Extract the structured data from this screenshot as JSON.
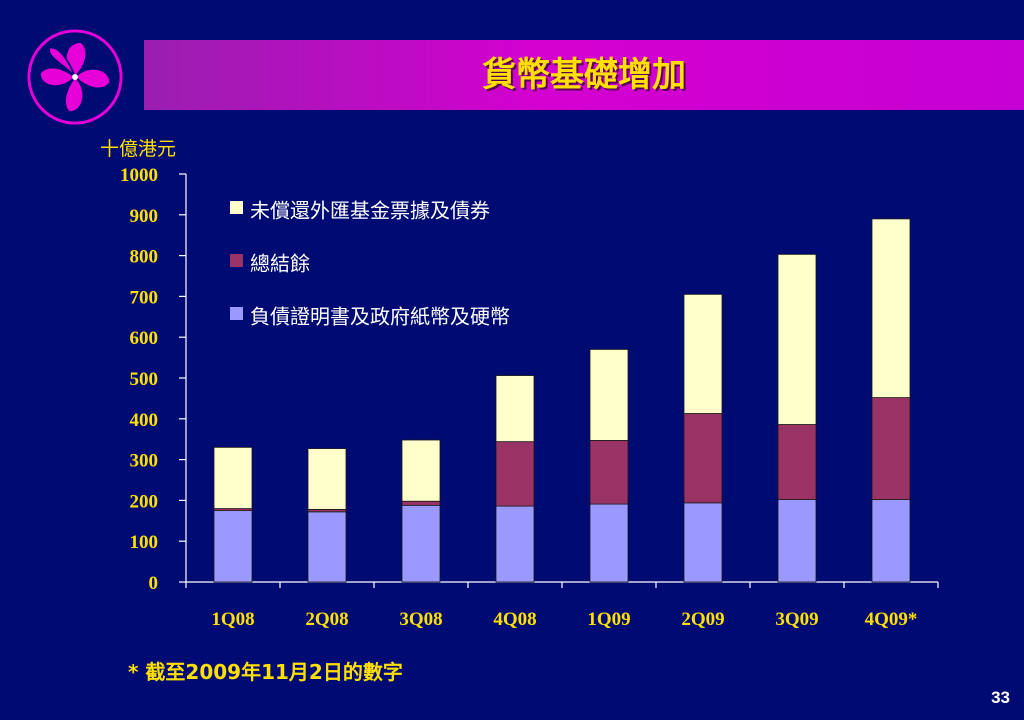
{
  "title": "貨幣基礎增加",
  "footnote": "* 截至2009年11月2日的數字",
  "page_number": "33",
  "colors": {
    "background": "#000a73",
    "title_text": "#ffe000",
    "axis_text": "#ffe000",
    "axis_line": "#ffffff"
  },
  "chart_data": {
    "type": "bar",
    "stacked": true,
    "unit_label": "十億港元",
    "categories": [
      "1Q08",
      "2Q08",
      "3Q08",
      "4Q08",
      "1Q09",
      "2Q09",
      "3Q09",
      "4Q09*"
    ],
    "ylim": [
      0,
      1000
    ],
    "yticks": [
      0,
      100,
      200,
      300,
      400,
      500,
      600,
      700,
      800,
      900,
      1000
    ],
    "legend_position": "top-left",
    "series": [
      {
        "name": "負債證明書及政府紙幣及硬幣",
        "color": "#9999ff",
        "values": [
          175,
          172,
          188,
          186,
          191,
          194,
          202,
          202
        ]
      },
      {
        "name": "總結餘",
        "color": "#993366",
        "values": [
          5,
          6,
          10,
          158,
          156,
          219,
          184,
          250
        ]
      },
      {
        "name": "未償還外匯基金票據及債券",
        "color": "#ffffcc",
        "values": [
          150,
          149,
          150,
          162,
          223,
          292,
          417,
          438
        ]
      }
    ]
  }
}
